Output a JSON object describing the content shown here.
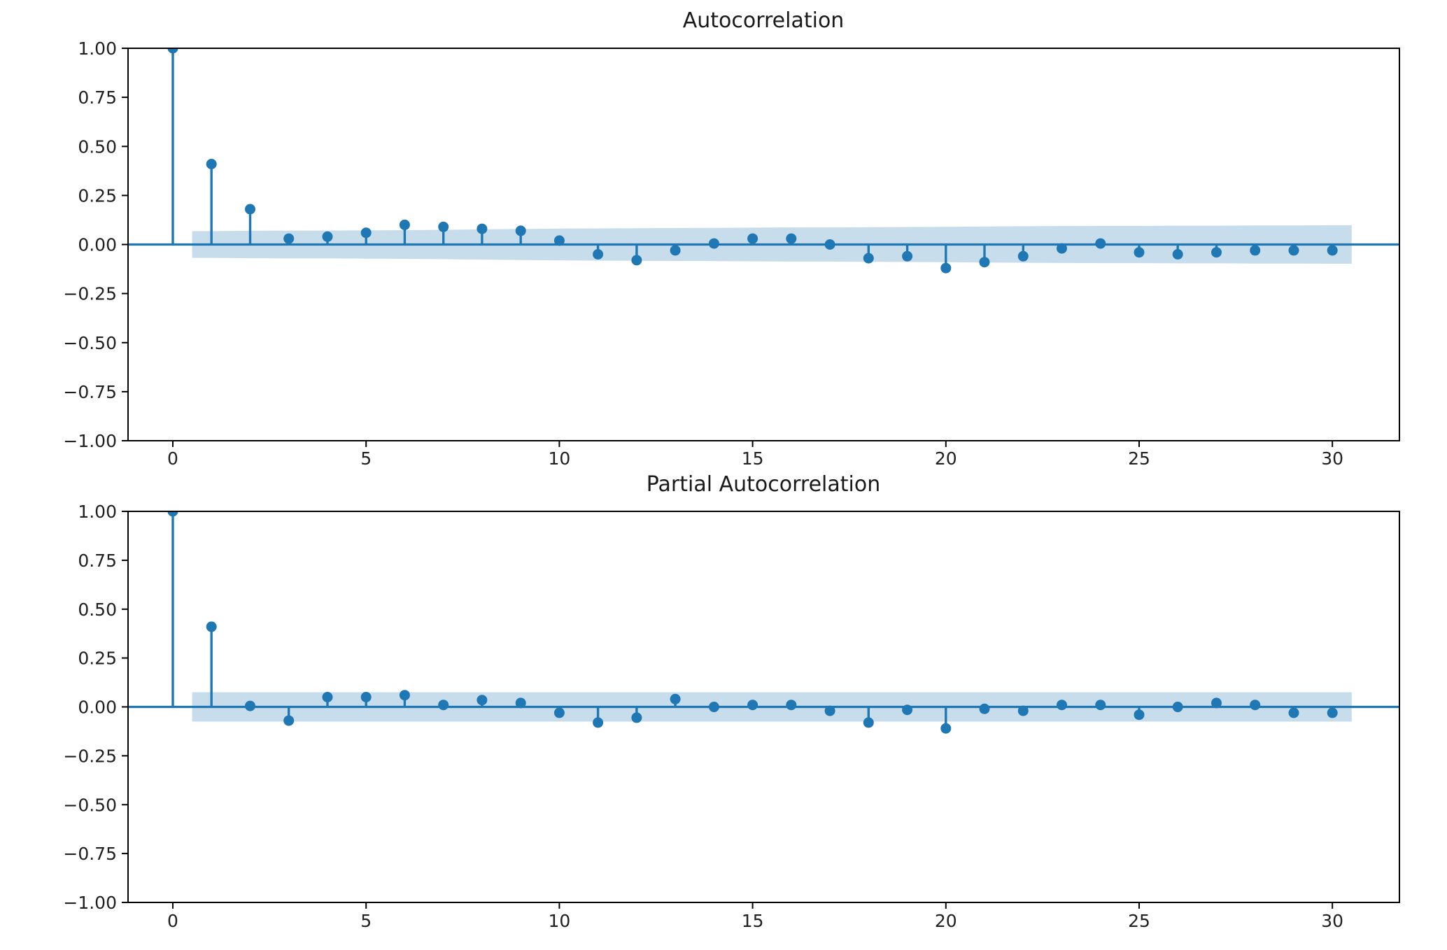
{
  "figure": {
    "background": "#ffffff",
    "plots_count": 2
  },
  "chart_data": [
    {
      "type": "stem",
      "title": "Autocorrelation",
      "xlabel": "",
      "ylabel": "",
      "xlim": [
        -1.2,
        31.7
      ],
      "ylim": [
        -1.0,
        1.0
      ],
      "grid": false,
      "legend": null,
      "xticks": {
        "values": [
          0,
          5,
          10,
          15,
          20,
          25,
          30
        ],
        "labels": [
          "0",
          "5",
          "10",
          "15",
          "20",
          "25",
          "30"
        ]
      },
      "yticks": {
        "values": [
          1.0,
          0.75,
          0.5,
          0.25,
          0.0,
          -0.25,
          -0.5,
          -0.75,
          -1.0
        ],
        "labels": [
          "1.00",
          "0.75",
          "0.50",
          "0.25",
          "0.00",
          "−0.25",
          "−0.50",
          "−0.75",
          "−1.00"
        ]
      },
      "lags": [
        0,
        1,
        2,
        3,
        4,
        5,
        6,
        7,
        8,
        9,
        10,
        11,
        12,
        13,
        14,
        15,
        16,
        17,
        18,
        19,
        20,
        21,
        22,
        23,
        24,
        25,
        26,
        27,
        28,
        29,
        30
      ],
      "values": [
        1.0,
        0.41,
        0.18,
        0.03,
        0.04,
        0.06,
        0.1,
        0.09,
        0.08,
        0.07,
        0.02,
        -0.05,
        -0.08,
        -0.03,
        0.005,
        0.03,
        0.03,
        0.0,
        -0.07,
        -0.06,
        -0.12,
        -0.09,
        -0.06,
        -0.02,
        0.005,
        -0.04,
        -0.05,
        -0.04,
        -0.03,
        -0.03,
        -0.03
      ],
      "confidence_band": {
        "from_lag": 0.5,
        "to_lag": 30.5,
        "half_widths": [
          0.068,
          0.07,
          0.071,
          0.071,
          0.072,
          0.073,
          0.075,
          0.077,
          0.079,
          0.081,
          0.082,
          0.083,
          0.084,
          0.085,
          0.086,
          0.087,
          0.087,
          0.088,
          0.089,
          0.09,
          0.092,
          0.093,
          0.094,
          0.095,
          0.095,
          0.096,
          0.096,
          0.097,
          0.097,
          0.098
        ]
      },
      "colors": {
        "series": "#1f77b4",
        "band": "#c7ddec",
        "axis": "#000000",
        "text": "#202020"
      }
    },
    {
      "type": "stem",
      "title": "Partial Autocorrelation",
      "xlabel": "",
      "ylabel": "",
      "xlim": [
        -1.2,
        31.7
      ],
      "ylim": [
        -1.0,
        1.0
      ],
      "grid": false,
      "legend": null,
      "xticks": {
        "values": [
          0,
          5,
          10,
          15,
          20,
          25,
          30
        ],
        "labels": [
          "0",
          "5",
          "10",
          "15",
          "20",
          "25",
          "30"
        ]
      },
      "yticks": {
        "values": [
          1.0,
          0.75,
          0.5,
          0.25,
          0.0,
          -0.25,
          -0.5,
          -0.75,
          -1.0
        ],
        "labels": [
          "1.00",
          "0.75",
          "0.50",
          "0.25",
          "0.00",
          "−0.25",
          "−0.50",
          "−0.75",
          "−1.00"
        ]
      },
      "lags": [
        0,
        1,
        2,
        3,
        4,
        5,
        6,
        7,
        8,
        9,
        10,
        11,
        12,
        13,
        14,
        15,
        16,
        17,
        18,
        19,
        20,
        21,
        22,
        23,
        24,
        25,
        26,
        27,
        28,
        29,
        30
      ],
      "values": [
        1.0,
        0.41,
        0.005,
        -0.07,
        0.05,
        0.05,
        0.06,
        0.01,
        0.035,
        0.02,
        -0.03,
        -0.08,
        -0.055,
        0.04,
        0.0,
        0.01,
        0.01,
        -0.02,
        -0.08,
        -0.015,
        -0.11,
        -0.01,
        -0.02,
        0.01,
        0.01,
        -0.04,
        0.0,
        0.02,
        0.01,
        -0.03,
        -0.03
      ],
      "confidence_band": {
        "from_lag": 0.5,
        "to_lag": 30.5,
        "half_widths": [
          0.075,
          0.075,
          0.075,
          0.075,
          0.075,
          0.075,
          0.075,
          0.075,
          0.075,
          0.075,
          0.075,
          0.075,
          0.075,
          0.075,
          0.075,
          0.075,
          0.075,
          0.075,
          0.075,
          0.075,
          0.075,
          0.075,
          0.075,
          0.075,
          0.075,
          0.075,
          0.075,
          0.075,
          0.075,
          0.075
        ]
      },
      "colors": {
        "series": "#1f77b4",
        "band": "#c7ddec",
        "axis": "#000000",
        "text": "#202020"
      }
    }
  ]
}
